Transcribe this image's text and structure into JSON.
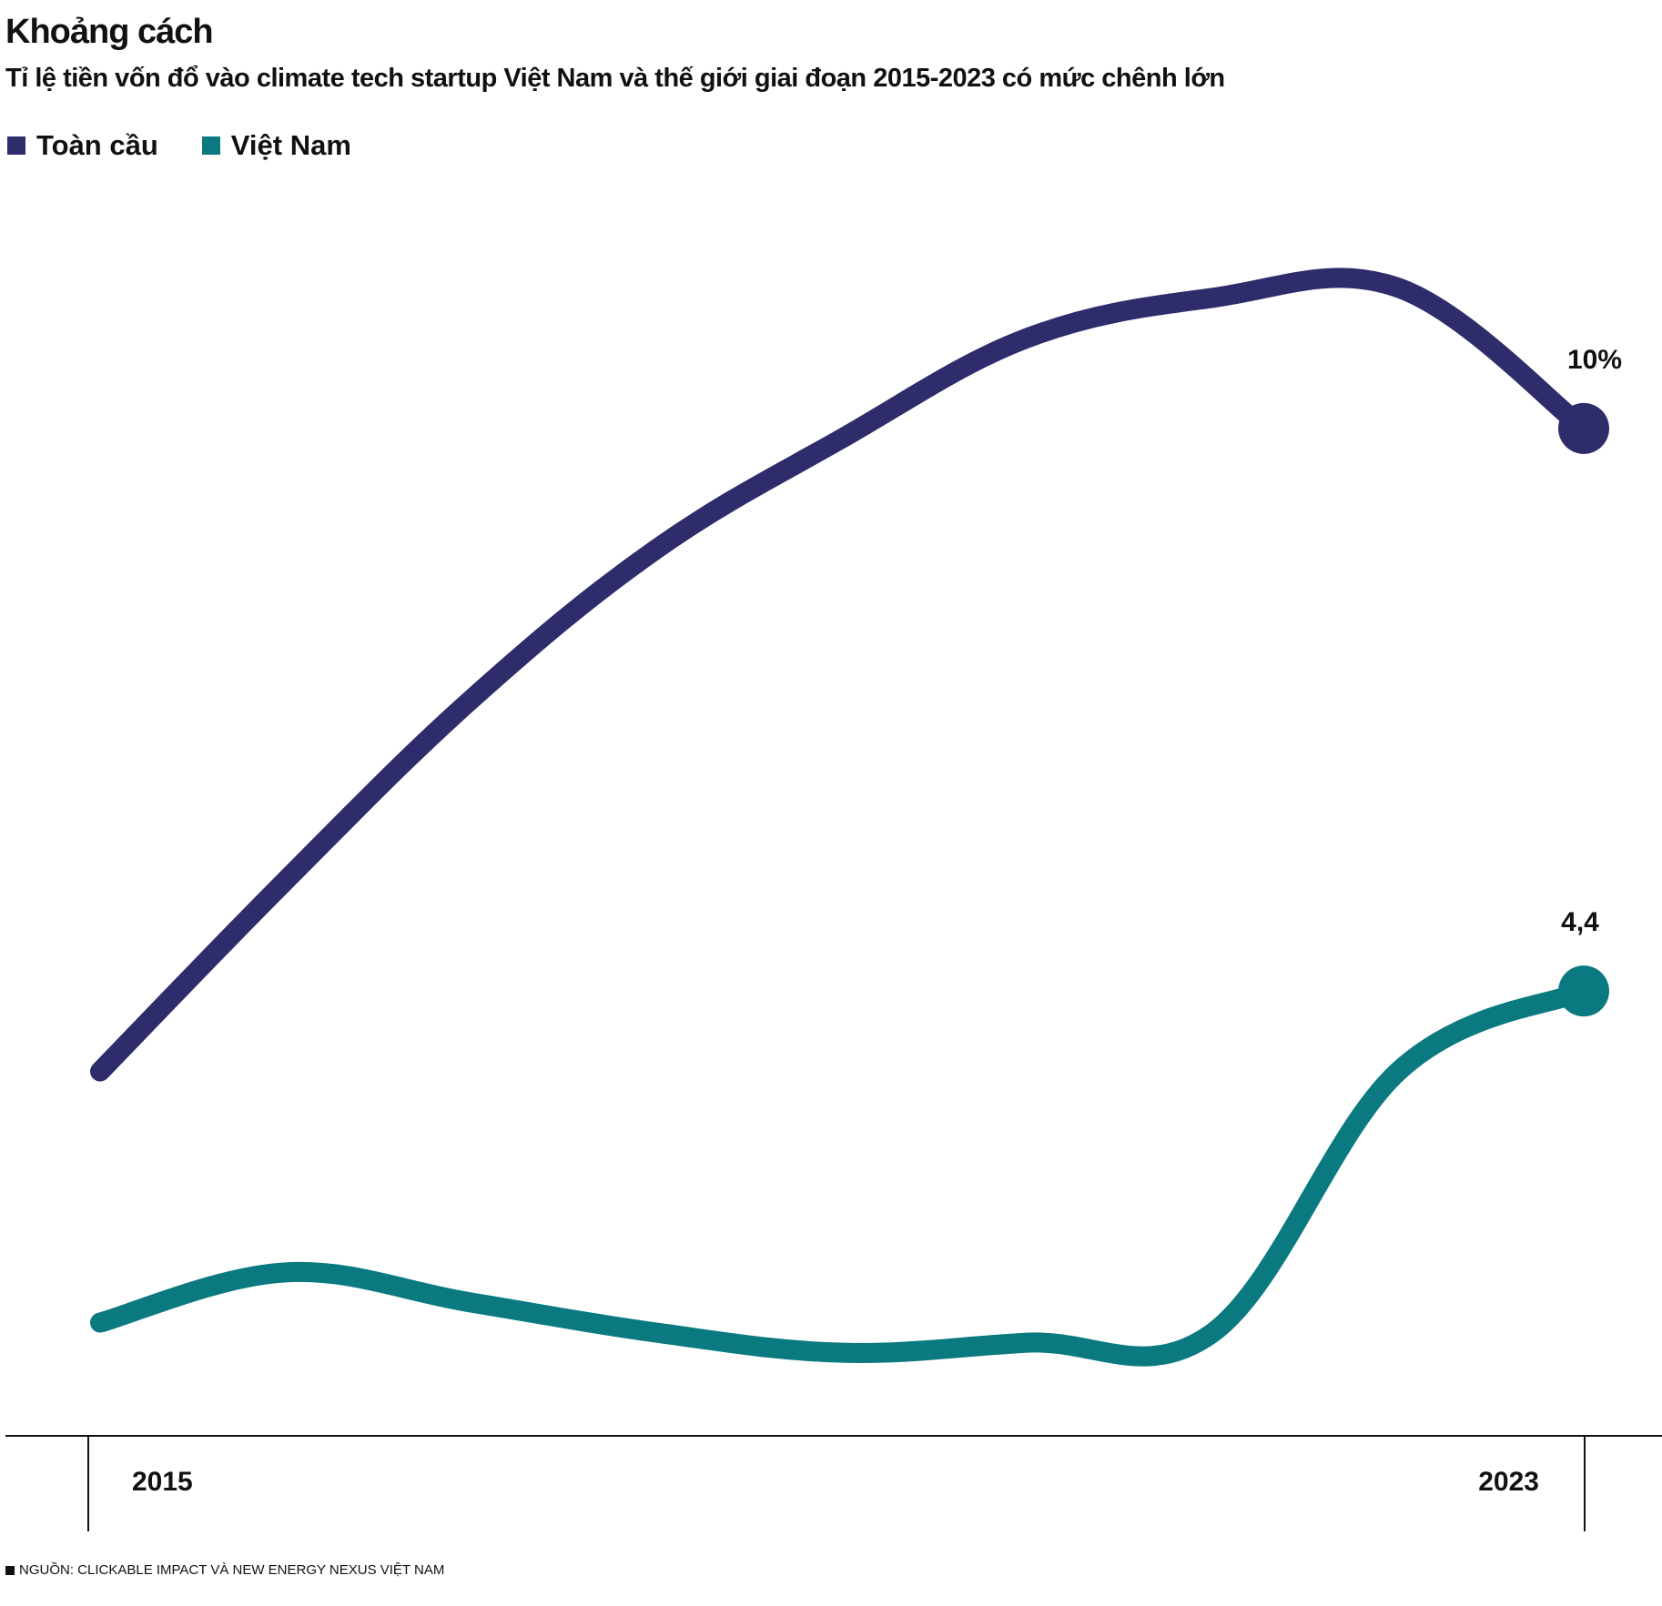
{
  "title": "Khoảng cách",
  "subtitle": "Tỉ lệ tiền vốn đổ vào climate tech startup Việt Nam và thế giới giai đoạn 2015-2023 có mức chênh lớn",
  "source": "NGUỒN: CLICKABLE IMPACT VÀ NEW ENERGY NEXUS VIỆT NAM",
  "colors": {
    "global": "#2e2c6b",
    "vietnam": "#0b7a80",
    "axis": "#111111"
  },
  "chart_data": {
    "type": "line",
    "x": [
      2015,
      2016,
      2017,
      2018,
      2019,
      2020,
      2021,
      2022,
      2023
    ],
    "x_tick_labels": [
      "2015",
      "2023"
    ],
    "series": [
      {
        "name": "Toàn cầu",
        "color": "#2e2c6b",
        "values": [
          3.6,
          5.5,
          7.3,
          8.8,
          9.9,
          10.9,
          11.3,
          11.4,
          10.0
        ],
        "end_label": "10%"
      },
      {
        "name": "Việt Nam",
        "color": "#0b7a80",
        "values": [
          1.1,
          1.6,
          1.3,
          1.0,
          0.8,
          0.9,
          1.0,
          3.6,
          4.4
        ],
        "end_label": "4,4"
      }
    ],
    "ylim": [
      0,
      12
    ],
    "grid": false,
    "legend": "top-left"
  }
}
